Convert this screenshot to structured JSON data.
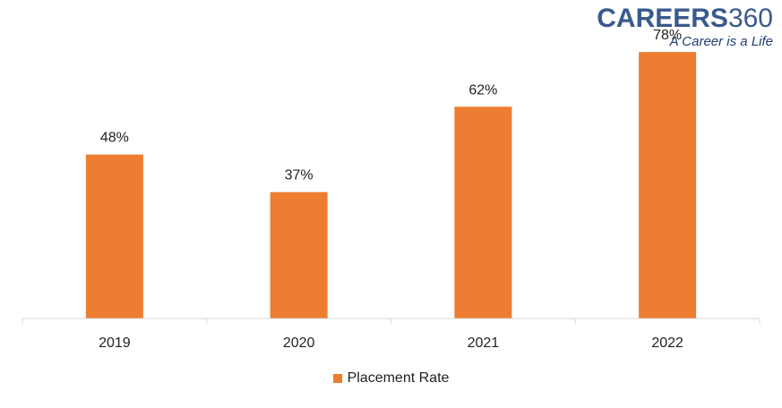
{
  "logo": {
    "word": "CAREERS",
    "number": "360",
    "tagline": "A Career is a Life",
    "color": "#3a5a8c"
  },
  "chart_data": {
    "type": "bar",
    "categories": [
      "2019",
      "2020",
      "2021",
      "2022"
    ],
    "series": [
      {
        "name": "Placement Rate",
        "values": [
          48,
          37,
          62,
          78
        ],
        "labels": [
          "48%",
          "37%",
          "62%",
          "78%"
        ],
        "color": "#ed7d31"
      }
    ],
    "title": "",
    "xlabel": "",
    "ylabel": "",
    "ylim": [
      0,
      88
    ],
    "grid": false,
    "legend_position": "bottom"
  }
}
